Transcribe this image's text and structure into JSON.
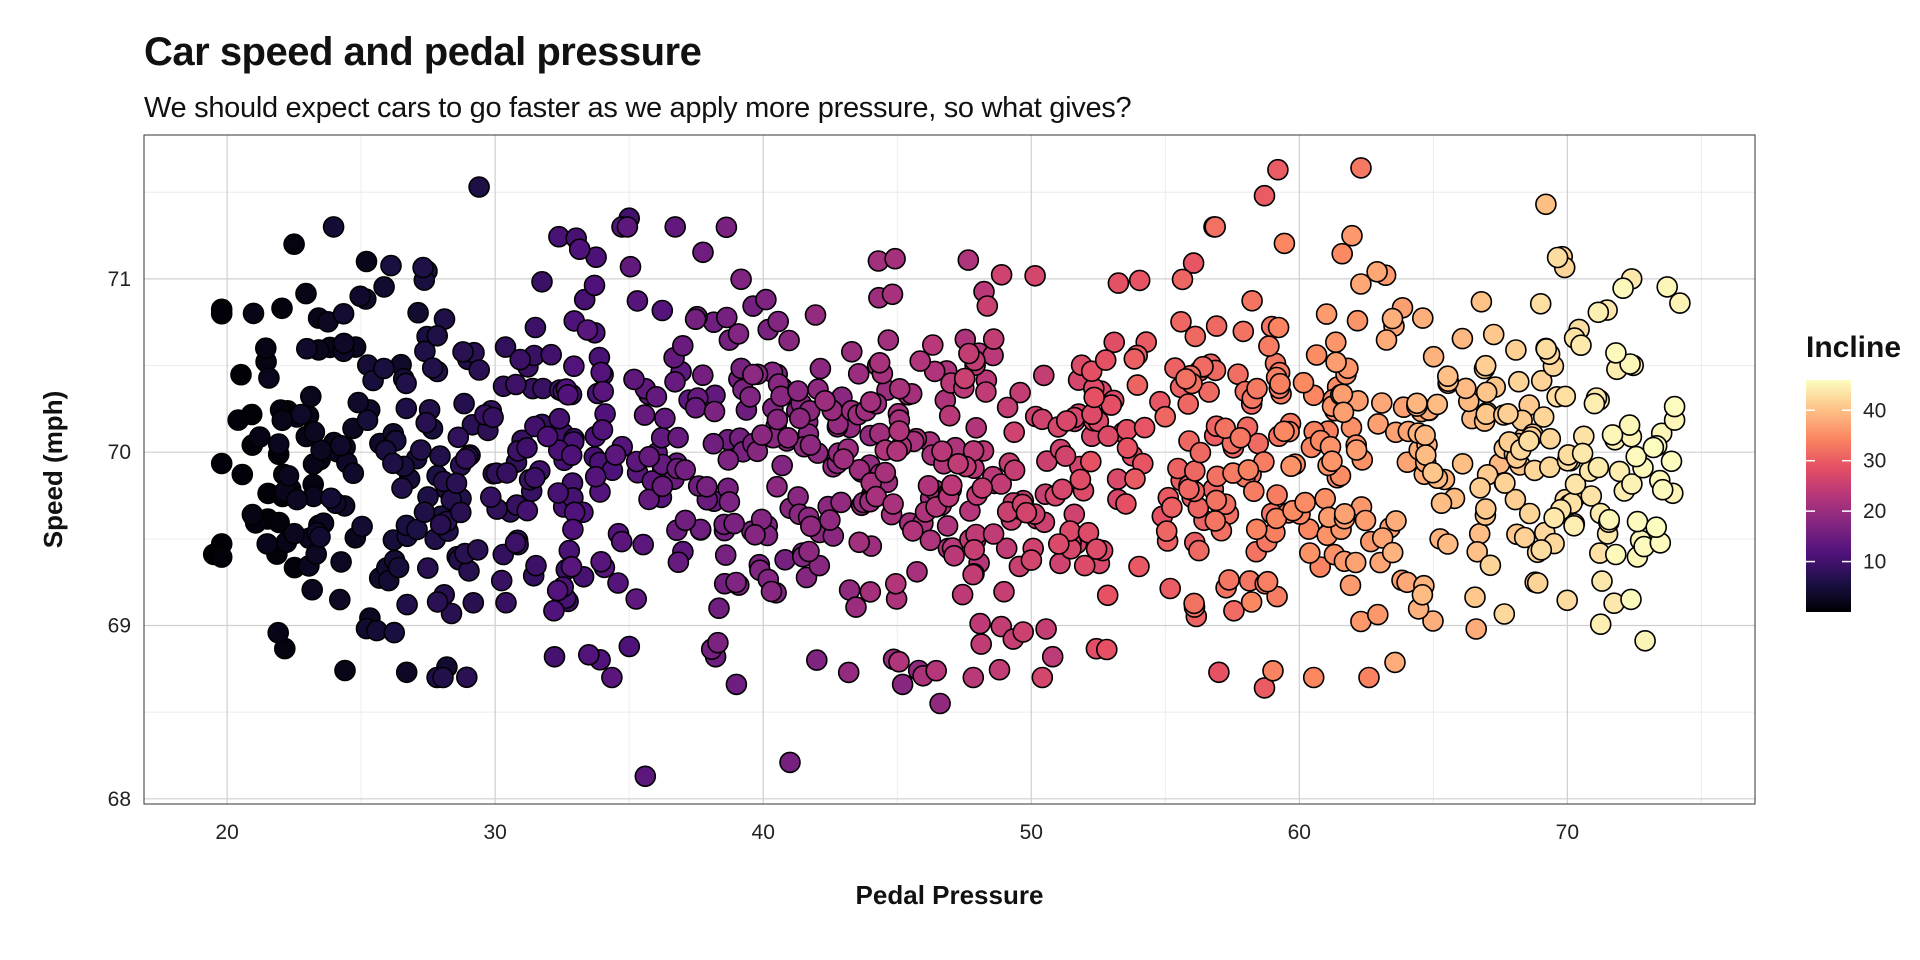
{
  "chart_data": {
    "type": "scatter",
    "title": "Car speed and pedal pressure",
    "subtitle": "We should expect cars to go faster as we apply more pressure, so what gives?",
    "xlabel": "Pedal Pressure",
    "ylabel": "Speed (mph)",
    "xlim": [
      16.9,
      77.0
    ],
    "ylim": [
      67.97,
      71.83
    ],
    "xticks": [
      20,
      30,
      40,
      50,
      60,
      70
    ],
    "yticks": [
      68,
      69,
      70,
      71
    ],
    "grid": true,
    "color_variable": "Incline",
    "color_scale": "magma",
    "color_range": [
      0,
      46
    ],
    "legend": {
      "title": "Incline",
      "ticks": [
        10,
        20,
        30,
        40
      ],
      "placement": "right"
    },
    "point_count": 1000,
    "visible_outliers": [
      {
        "x": 29.4,
        "y": 71.53,
        "incline": 6
      },
      {
        "x": 35.6,
        "y": 68.13,
        "incline": 13
      },
      {
        "x": 41.0,
        "y": 68.21,
        "incline": 16
      },
      {
        "x": 39.0,
        "y": 68.66,
        "incline": 15
      },
      {
        "x": 46.6,
        "y": 68.55,
        "incline": 19
      },
      {
        "x": 45.8,
        "y": 68.74,
        "incline": 19
      },
      {
        "x": 45.2,
        "y": 68.66,
        "incline": 18
      },
      {
        "x": 42.0,
        "y": 68.8,
        "incline": 17
      },
      {
        "x": 59.2,
        "y": 71.63,
        "incline": 30
      },
      {
        "x": 58.7,
        "y": 71.48,
        "incline": 30
      },
      {
        "x": 62.3,
        "y": 71.64,
        "incline": 33
      },
      {
        "x": 69.2,
        "y": 71.43,
        "incline": 40
      },
      {
        "x": 74.2,
        "y": 70.86,
        "incline": 45
      },
      {
        "x": 72.4,
        "y": 71.0,
        "incline": 44
      },
      {
        "x": 68.8,
        "y": 69.25,
        "incline": 40
      },
      {
        "x": 66.6,
        "y": 68.98,
        "incline": 38
      },
      {
        "x": 62.6,
        "y": 68.7,
        "incline": 34
      },
      {
        "x": 58.7,
        "y": 68.64,
        "incline": 30
      },
      {
        "x": 57.0,
        "y": 68.73,
        "incline": 29
      },
      {
        "x": 50.8,
        "y": 68.82,
        "incline": 24
      },
      {
        "x": 19.5,
        "y": 69.41,
        "incline": 0
      },
      {
        "x": 24.4,
        "y": 68.74,
        "incline": 2
      },
      {
        "x": 26.7,
        "y": 68.73,
        "incline": 3
      },
      {
        "x": 28.2,
        "y": 68.76,
        "incline": 4
      },
      {
        "x": 22.5,
        "y": 71.2,
        "incline": 1
      },
      {
        "x": 25.2,
        "y": 71.1,
        "incline": 2
      },
      {
        "x": 35.0,
        "y": 71.35,
        "incline": 10
      }
    ]
  }
}
